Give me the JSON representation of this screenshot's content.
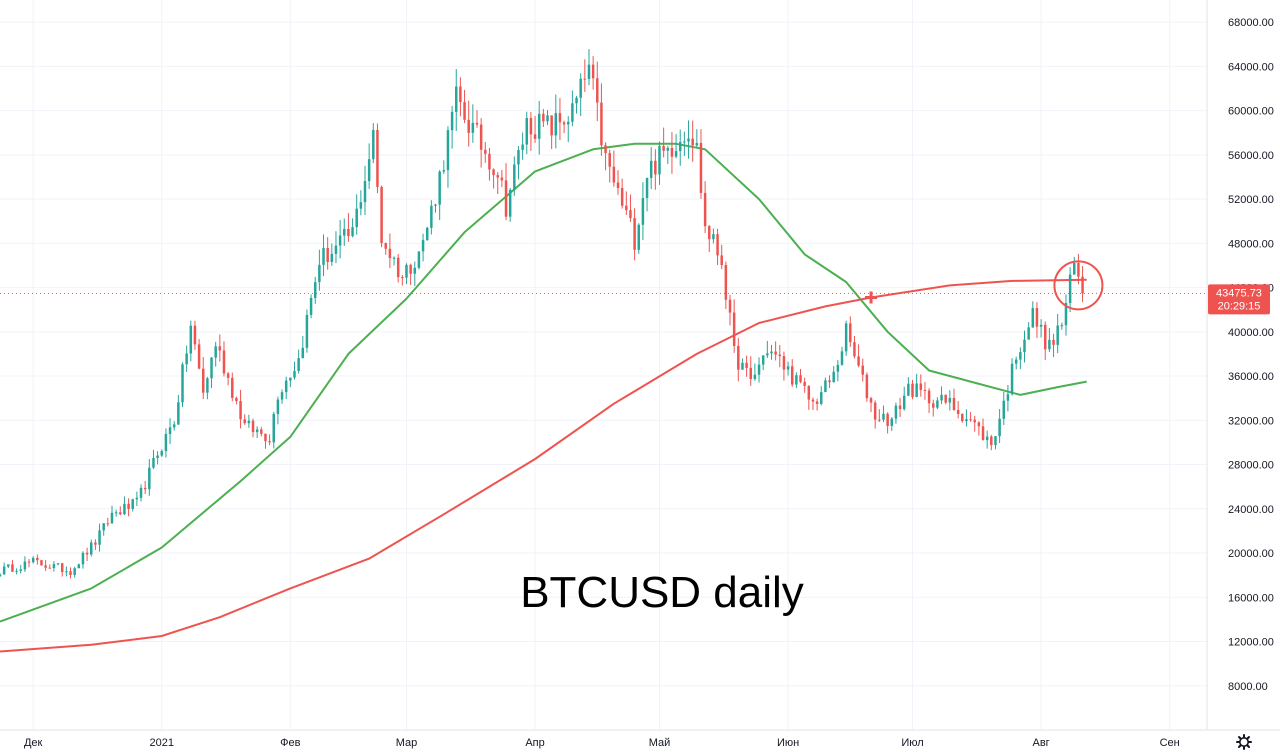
{
  "chart_data": {
    "type": "candlestick",
    "annotation": "BTCUSD daily",
    "y_axis": {
      "range": [
        4000,
        70000
      ],
      "ticks": [
        "8000.00",
        "12000.00",
        "16000.00",
        "20000.00",
        "24000.00",
        "28000.00",
        "32000.00",
        "36000.00",
        "40000.00",
        "44000.00",
        "48000.00",
        "52000.00",
        "56000.00",
        "60000.00",
        "64000.00",
        "68000.00"
      ]
    },
    "x_axis": {
      "start_date": "2020-11-23",
      "end_date": "2021-09-10",
      "labels": [
        {
          "text": "Дек",
          "date": "2020-12-01"
        },
        {
          "text": "2021",
          "date": "2021-01-01"
        },
        {
          "text": "Фев",
          "date": "2021-02-01"
        },
        {
          "text": "Мар",
          "date": "2021-03-01"
        },
        {
          "text": "Апр",
          "date": "2021-04-01"
        },
        {
          "text": "Май",
          "date": "2021-05-01"
        },
        {
          "text": "Июн",
          "date": "2021-06-01"
        },
        {
          "text": "Июл",
          "date": "2021-07-01"
        },
        {
          "text": "Авг",
          "date": "2021-08-01"
        },
        {
          "text": "Сен",
          "date": "2021-09-01"
        }
      ]
    },
    "price_path": [
      [
        "2020-11-23",
        18400
      ],
      [
        "2020-12-01",
        19200
      ],
      [
        "2020-12-10",
        18400
      ],
      [
        "2020-12-16",
        21000
      ],
      [
        "2020-12-20",
        23500
      ],
      [
        "2020-12-26",
        24500
      ],
      [
        "2020-12-31",
        29000
      ],
      [
        "2021-01-04",
        32000
      ],
      [
        "2021-01-08",
        40500
      ],
      [
        "2021-01-11",
        34500
      ],
      [
        "2021-01-14",
        39000
      ],
      [
        "2021-01-21",
        31500
      ],
      [
        "2021-01-27",
        30500
      ],
      [
        "2021-01-29",
        34500
      ],
      [
        "2021-02-03",
        37500
      ],
      [
        "2021-02-08",
        46500
      ],
      [
        "2021-02-12",
        47500
      ],
      [
        "2021-02-16",
        49000
      ],
      [
        "2021-02-21",
        57500
      ],
      [
        "2021-02-23",
        48500
      ],
      [
        "2021-02-28",
        45000
      ],
      [
        "2021-03-05",
        48000
      ],
      [
        "2021-03-09",
        54000
      ],
      [
        "2021-03-13",
        61000
      ],
      [
        "2021-03-18",
        57500
      ],
      [
        "2021-03-23",
        54500
      ],
      [
        "2021-03-25",
        51500
      ],
      [
        "2021-03-30",
        58800
      ],
      [
        "2021-04-05",
        58500
      ],
      [
        "2021-04-10",
        59800
      ],
      [
        "2021-04-14",
        63800
      ],
      [
        "2021-04-18",
        55500
      ],
      [
        "2021-04-25",
        48500
      ],
      [
        "2021-04-28",
        54500
      ],
      [
        "2021-05-03",
        56500
      ],
      [
        "2021-05-08",
        58500
      ],
      [
        "2021-05-10",
        56500
      ],
      [
        "2021-05-12",
        49500
      ],
      [
        "2021-05-16",
        46500
      ],
      [
        "2021-05-19",
        38000
      ],
      [
        "2021-05-23",
        35500
      ],
      [
        "2021-05-27",
        38500
      ],
      [
        "2021-06-01",
        36500
      ],
      [
        "2021-06-07",
        33500
      ],
      [
        "2021-06-12",
        36000
      ],
      [
        "2021-06-15",
        40000
      ],
      [
        "2021-06-19",
        35500
      ],
      [
        "2021-06-22",
        32500
      ],
      [
        "2021-06-26",
        32000
      ],
      [
        "2021-06-30",
        35000
      ],
      [
        "2021-07-05",
        34000
      ],
      [
        "2021-07-10",
        33500
      ],
      [
        "2021-07-15",
        32000
      ],
      [
        "2021-07-20",
        29800
      ],
      [
        "2021-07-23",
        33500
      ],
      [
        "2021-07-26",
        38000
      ],
      [
        "2021-07-30",
        41500
      ],
      [
        "2021-08-03",
        38500
      ],
      [
        "2021-08-06",
        40800
      ],
      [
        "2021-08-09",
        46000
      ],
      [
        "2021-08-11",
        43475
      ]
    ],
    "series": [
      {
        "name": "",
        "color": "#4caf50",
        "type": "line",
        "points": [
          [
            "2020-11-23",
            13800
          ],
          [
            "2020-12-15",
            16800
          ],
          [
            "2021-01-01",
            20500
          ],
          [
            "2021-01-20",
            26500
          ],
          [
            "2021-02-01",
            30500
          ],
          [
            "2021-02-15",
            38000
          ],
          [
            "2021-03-01",
            43000
          ],
          [
            "2021-03-15",
            49000
          ],
          [
            "2021-04-01",
            54500
          ],
          [
            "2021-04-15",
            56500
          ],
          [
            "2021-04-25",
            57000
          ],
          [
            "2021-05-05",
            57000
          ],
          [
            "2021-05-12",
            56500
          ],
          [
            "2021-05-25",
            52000
          ],
          [
            "2021-06-05",
            47000
          ],
          [
            "2021-06-15",
            44500
          ],
          [
            "2021-06-25",
            40000
          ],
          [
            "2021-07-05",
            36500
          ],
          [
            "2021-07-15",
            35500
          ],
          [
            "2021-07-27",
            34300
          ],
          [
            "2021-08-05",
            35000
          ],
          [
            "2021-08-12",
            35500
          ]
        ]
      },
      {
        "name": "",
        "color": "#ef5350",
        "type": "line",
        "points": [
          [
            "2020-11-23",
            11100
          ],
          [
            "2020-12-15",
            11700
          ],
          [
            "2021-01-01",
            12500
          ],
          [
            "2021-01-15",
            14200
          ],
          [
            "2021-02-01",
            16800
          ],
          [
            "2021-02-20",
            19500
          ],
          [
            "2021-03-10",
            23500
          ],
          [
            "2021-04-01",
            28500
          ],
          [
            "2021-04-20",
            33500
          ],
          [
            "2021-05-10",
            38000
          ],
          [
            "2021-05-25",
            40800
          ],
          [
            "2021-06-10",
            42300
          ],
          [
            "2021-06-21",
            43100
          ],
          [
            "2021-07-10",
            44200
          ],
          [
            "2021-07-25",
            44600
          ],
          [
            "2021-08-12",
            44700
          ]
        ]
      }
    ],
    "markers": [
      {
        "type": "cross",
        "date": "2021-06-21",
        "value": 43100,
        "color": "#ef5350"
      },
      {
        "type": "circle",
        "date": "2021-08-10",
        "value": 44200,
        "color": "#ef5350"
      }
    ],
    "last_price": {
      "value": 43475.73,
      "label": "43475.73",
      "countdown": "20:29:15",
      "color": "#ef5350"
    },
    "colors": {
      "up": "#26a69a",
      "down": "#ef5350",
      "grid": "#f0f3fa",
      "axis_text": "#131722"
    },
    "grid": true
  },
  "toolbar": {
    "settings_icon": "gear-icon"
  }
}
